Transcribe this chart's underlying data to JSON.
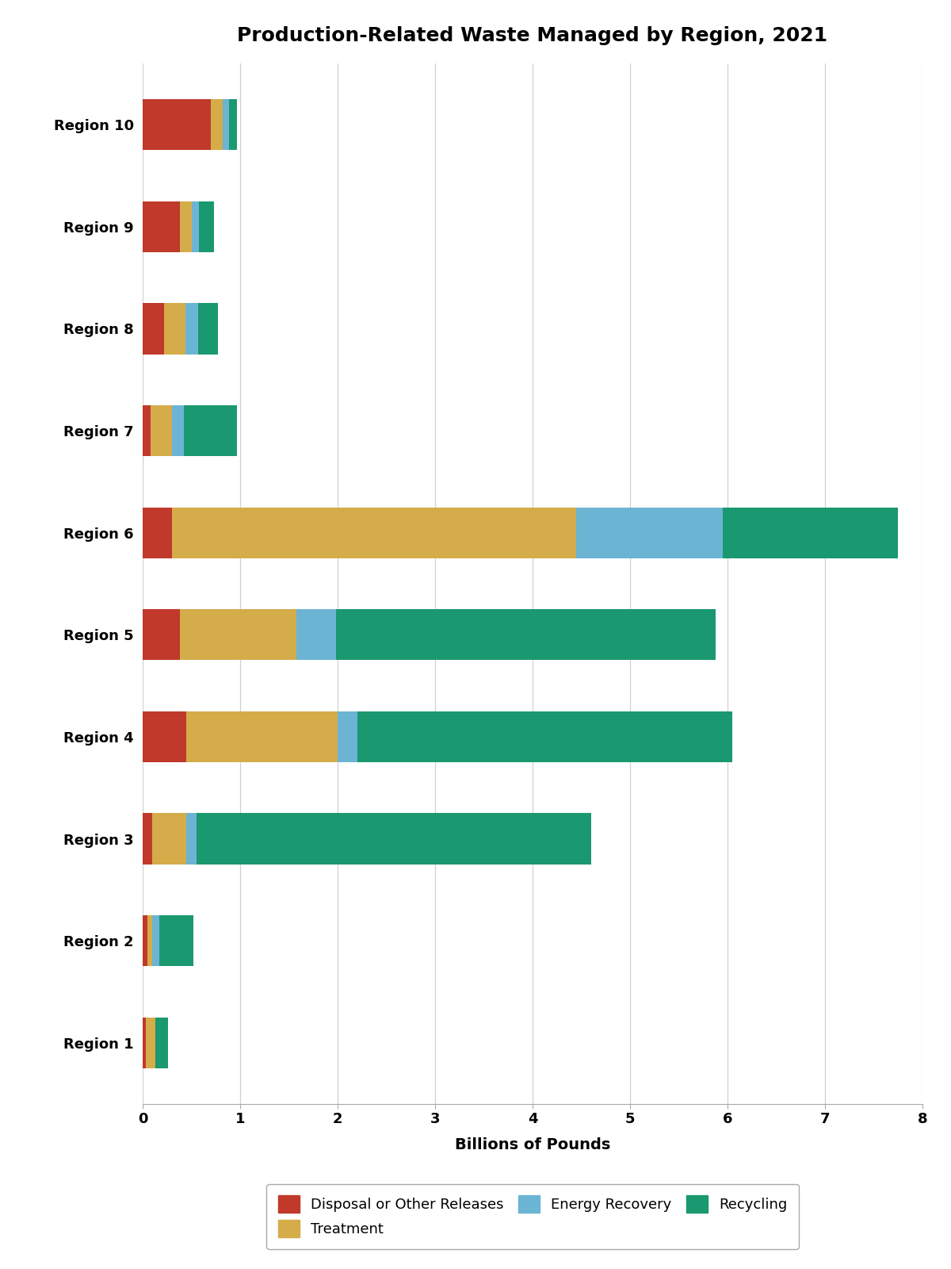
{
  "title": "Production-Related Waste Managed by Region, 2021",
  "xlabel": "Billions of Pounds",
  "regions": [
    "Region 1",
    "Region 2",
    "Region 3",
    "Region 4",
    "Region 5",
    "Region 6",
    "Region 7",
    "Region 8",
    "Region 9",
    "Region 10"
  ],
  "categories": [
    "Disposal or Other Releases",
    "Treatment",
    "Energy Recovery",
    "Recycling"
  ],
  "colors": [
    "#c0392b",
    "#d4ac4a",
    "#6cb4d4",
    "#1a9870"
  ],
  "data": {
    "Disposal or Other Releases": [
      0.03,
      0.05,
      0.1,
      0.45,
      0.38,
      0.3,
      0.08,
      0.22,
      0.38,
      0.7
    ],
    "Treatment": [
      0.1,
      0.05,
      0.35,
      1.55,
      1.2,
      4.15,
      0.22,
      0.22,
      0.12,
      0.12
    ],
    "Energy Recovery": [
      0.0,
      0.07,
      0.1,
      0.2,
      0.4,
      1.5,
      0.12,
      0.13,
      0.08,
      0.07
    ],
    "Recycling": [
      0.13,
      0.35,
      4.05,
      3.85,
      3.9,
      1.8,
      0.55,
      0.2,
      0.15,
      0.08
    ]
  },
  "xlim": [
    0,
    8
  ],
  "xticks": [
    0,
    1,
    2,
    3,
    4,
    5,
    6,
    7,
    8
  ],
  "figsize": [
    12,
    16
  ],
  "dpi": 100,
  "background_color": "#ffffff",
  "grid_color": "#d0d0d0",
  "title_fontsize": 18,
  "label_fontsize": 14,
  "tick_fontsize": 13,
  "legend_fontsize": 13,
  "bar_height": 0.5
}
